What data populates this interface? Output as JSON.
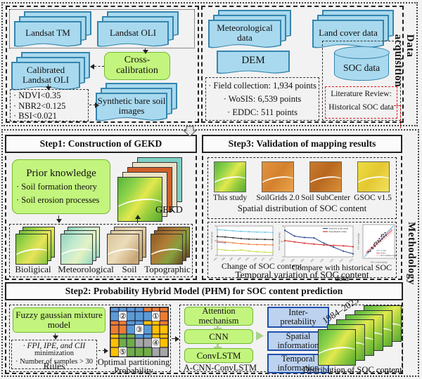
{
  "acquisition": {
    "label": "Data acquisition",
    "landsat_tm": "Landsat TM",
    "landsat_oli": "Landsat OLI",
    "cross_calibration": [
      "Cross-",
      "calibration"
    ],
    "calibrated": "Calibrated Landsat OLI",
    "index_rules": [
      "· NDVI<0.35",
      "· NBR2<0.125",
      "· BSI<0.021"
    ],
    "synthetic": "Synthetic bare soil images",
    "meteorological": "Meteorological data",
    "land_cover": "Land cover data",
    "dem": "DEM",
    "soc": "SOC data",
    "sample_points": [
      "· Field collection: 1,934 points",
      "· WoSIS: 6,539 points",
      "· EDDC: 511 points"
    ],
    "literature": [
      "Literature Review:",
      "Historical SOC data"
    ]
  },
  "methodology": {
    "label": "Methodology",
    "step1": {
      "title": "Step1: Construction of GEKD",
      "prior_title": "Prior knowledge",
      "prior_items": [
        "· Soil formation theory",
        "· Soil erosion processes"
      ],
      "gekd_label": "GEKD",
      "covariate_labels": [
        "Bioligical",
        "Meteorological",
        "Soil",
        "Topographic"
      ]
    },
    "step3": {
      "title": "Step3: Validation of mapping results",
      "map_labels": [
        "This study",
        "SoilGrids 2.0",
        "Soil SubCenter",
        "GSOC v1.5"
      ],
      "spatial_caption": "Spatial distribution of SOC content",
      "chart1_caption": "Change of SOC content",
      "chart2_caption": "Compare with historical SOC data",
      "temporal_caption": "Temporal variation of SOC content"
    },
    "step2": {
      "title": "Step2: Probability Hybrid Model (PHM) for SOC content prediction",
      "fuzzy": "Fuzzy gaussian mixture model",
      "rules_lines": [
        "· FPI, IPE, and CII",
        "minimization",
        "· Number of samples > 30"
      ],
      "rules_label": "Rules",
      "partition_caption1": "Optimal partitioning",
      "partition_caption2": "Probability",
      "grid": {
        "rows": [
          "BBBBOOO",
          "BBBBOOO",
          "BBYYOOO",
          "BBYYYGG",
          "BBYYYGG",
          "AAYYGGG",
          "AAAGGGG"
        ],
        "colors": {
          "B": "#5b9bd5",
          "O": "#ed7d31",
          "Y": "#ffc000",
          "G": "#70ad47",
          "A": "#a6a6a6"
        },
        "marks": [
          {
            "ch": "②",
            "r": 2,
            "c": 2
          },
          {
            "ch": "①",
            "r": 2,
            "c": 6
          },
          {
            "ch": "③",
            "r": 4,
            "c": 4
          },
          {
            "ch": "④",
            "r": 6,
            "c": 6
          },
          {
            "ch": "⑤",
            "r": 7,
            "c": 2
          }
        ]
      },
      "model": [
        "Attention mechanism",
        "CNN",
        "ConvLSTM"
      ],
      "model_label": "A-CNN-ConvLSTM",
      "outputs": [
        [
          "Inter-",
          "pretability"
        ],
        "Spatial information",
        "Temporal information"
      ],
      "years": "1984–2023",
      "distribution_caption": "Distribution of SOC content"
    }
  },
  "chart_data": [
    {
      "id": "chart1",
      "type": "line",
      "title": "Change of SOC content",
      "ylabel": "SOC content (g/kg)",
      "xlabel": "",
      "x": [
        1985,
        1990,
        1995,
        2000,
        2005,
        2010,
        2015,
        2020
      ],
      "ylim": [
        8,
        24
      ],
      "legend": false,
      "series": [
        {
          "name": "",
          "color": "#67c5e8",
          "values": [
            22.0,
            21.7,
            21.4,
            21.1,
            20.9,
            20.7,
            20.6,
            20.5
          ]
        },
        {
          "name": "",
          "color": "#222222",
          "values": [
            18.3,
            18.0,
            17.6,
            17.2,
            16.9,
            16.8,
            16.7,
            16.6
          ]
        },
        {
          "name": "",
          "color": "#f07838",
          "values": [
            15.7,
            15.3,
            14.8,
            14.4,
            14.1,
            13.9,
            13.8,
            13.7
          ]
        },
        {
          "name": "",
          "color": "#b07fd4",
          "values": [
            15.2,
            14.8,
            null,
            null,
            null,
            null,
            null,
            null
          ]
        },
        {
          "name": "",
          "color": "#c7dd3c",
          "values": [
            11.4,
            10.9,
            10.6,
            11.0,
            10.4,
            10.0,
            9.8,
            9.7
          ]
        }
      ]
    },
    {
      "id": "chart2",
      "type": "line",
      "title": "Compare with historical SOC data",
      "ylabel": "SOC content (g/kg)",
      "xlabel": "",
      "x": [
        1985,
        1990,
        1995,
        2000,
        2005,
        2010,
        2015,
        2020
      ],
      "ylim": [
        13,
        20
      ],
      "legend": true,
      "series": [
        {
          "name": "Predicted in this study",
          "color": "#1f3d8c",
          "values": [
            19.0,
            17.7,
            17.4,
            17.3,
            16.1,
            15.2,
            14.3,
            13.7
          ]
        },
        {
          "name": "Experimental values",
          "color": "#d42020",
          "values": [
            16.7,
            16.4,
            16.1,
            15.9,
            15.7,
            15.6,
            15.5,
            15.3
          ]
        }
      ]
    },
    {
      "id": "chart3",
      "type": "scatter",
      "xlabel": "SOC content (g/kg)",
      "ylabel": "SOC content (g/kg)",
      "xlim": [
        9,
        21
      ],
      "ylim": [
        9,
        21
      ],
      "points": [
        [
          11,
          11.3
        ],
        [
          11.8,
          11.5
        ],
        [
          12.3,
          12.8
        ],
        [
          12.8,
          12.5
        ],
        [
          13.2,
          13.8
        ],
        [
          13.6,
          13.3
        ],
        [
          14,
          14.7
        ],
        [
          14.3,
          14.1
        ],
        [
          14.7,
          15.3
        ],
        [
          15,
          14.8
        ],
        [
          15.2,
          16
        ],
        [
          15.6,
          15.2
        ],
        [
          16,
          16.8
        ],
        [
          16.3,
          15.9
        ],
        [
          16.7,
          17.5
        ],
        [
          17,
          16.6
        ],
        [
          17.4,
          18.1
        ],
        [
          17.8,
          17.2
        ],
        [
          16.1,
          17.3
        ],
        [
          13.4,
          14.4
        ]
      ],
      "band": {
        "name": "95% confidence interval",
        "color": "#f6c6d0",
        "points": [
          [
            10.2,
            9.9
          ],
          [
            20.2,
            18.1
          ],
          [
            20.2,
            20.3
          ],
          [
            10.2,
            11.7
          ]
        ]
      },
      "lines": [
        {
          "name": "1:1 line",
          "color": "#6ab2e8",
          "points": [
            [
              9.5,
              9.5
            ],
            [
              20.6,
              20.6
            ]
          ]
        },
        {
          "name": "fit line",
          "color": "#e06060",
          "points": [
            [
              10.2,
              10.8
            ],
            [
              20.2,
              19.2
            ]
          ]
        }
      ]
    }
  ]
}
